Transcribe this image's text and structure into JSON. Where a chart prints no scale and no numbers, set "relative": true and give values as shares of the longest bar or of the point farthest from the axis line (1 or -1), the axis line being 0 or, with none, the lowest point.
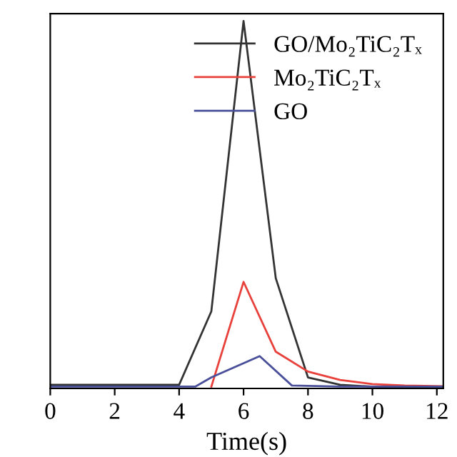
{
  "chart_data": {
    "type": "line",
    "xlabel": "Time(s)",
    "relative": true,
    "xlim": [
      0,
      12.2
    ],
    "xticks": [
      0,
      2,
      4,
      6,
      8,
      10,
      12
    ],
    "legend": "top right",
    "grid": false,
    "marker": "none",
    "line_style": "solid",
    "series": [
      {
        "name": "GO/Mo₂TiC₂Tₓ",
        "color": "#333333",
        "x": [
          0,
          1,
          2,
          3,
          4,
          5,
          6,
          7,
          8,
          9,
          10,
          11,
          12.2
        ],
        "values": [
          0.01,
          0.01,
          0.01,
          0.01,
          0.01,
          0.21,
          1,
          0.3,
          0.03,
          0.01,
          0.005,
          0.003,
          0.003
        ]
      },
      {
        "name": "Mo₂TiC₂Tₓ",
        "color": "#e8403a",
        "x": [
          5,
          6,
          7,
          8,
          9,
          10,
          11,
          12.2
        ],
        "values": [
          0.005,
          0.29,
          0.1,
          0.046,
          0.023,
          0.012,
          0.008,
          0.006
        ]
      },
      {
        "name": "GO",
        "color": "#4a4f9a",
        "x": [
          0,
          1,
          2,
          3,
          4,
          4.5,
          5,
          6.5,
          7.5,
          9,
          10,
          11,
          12.2
        ],
        "values": [
          0.005,
          0.005,
          0.005,
          0.005,
          0.005,
          0.005,
          0.03,
          0.088,
          0.008,
          0.005,
          0.005,
          0.005,
          0.005
        ]
      }
    ]
  }
}
